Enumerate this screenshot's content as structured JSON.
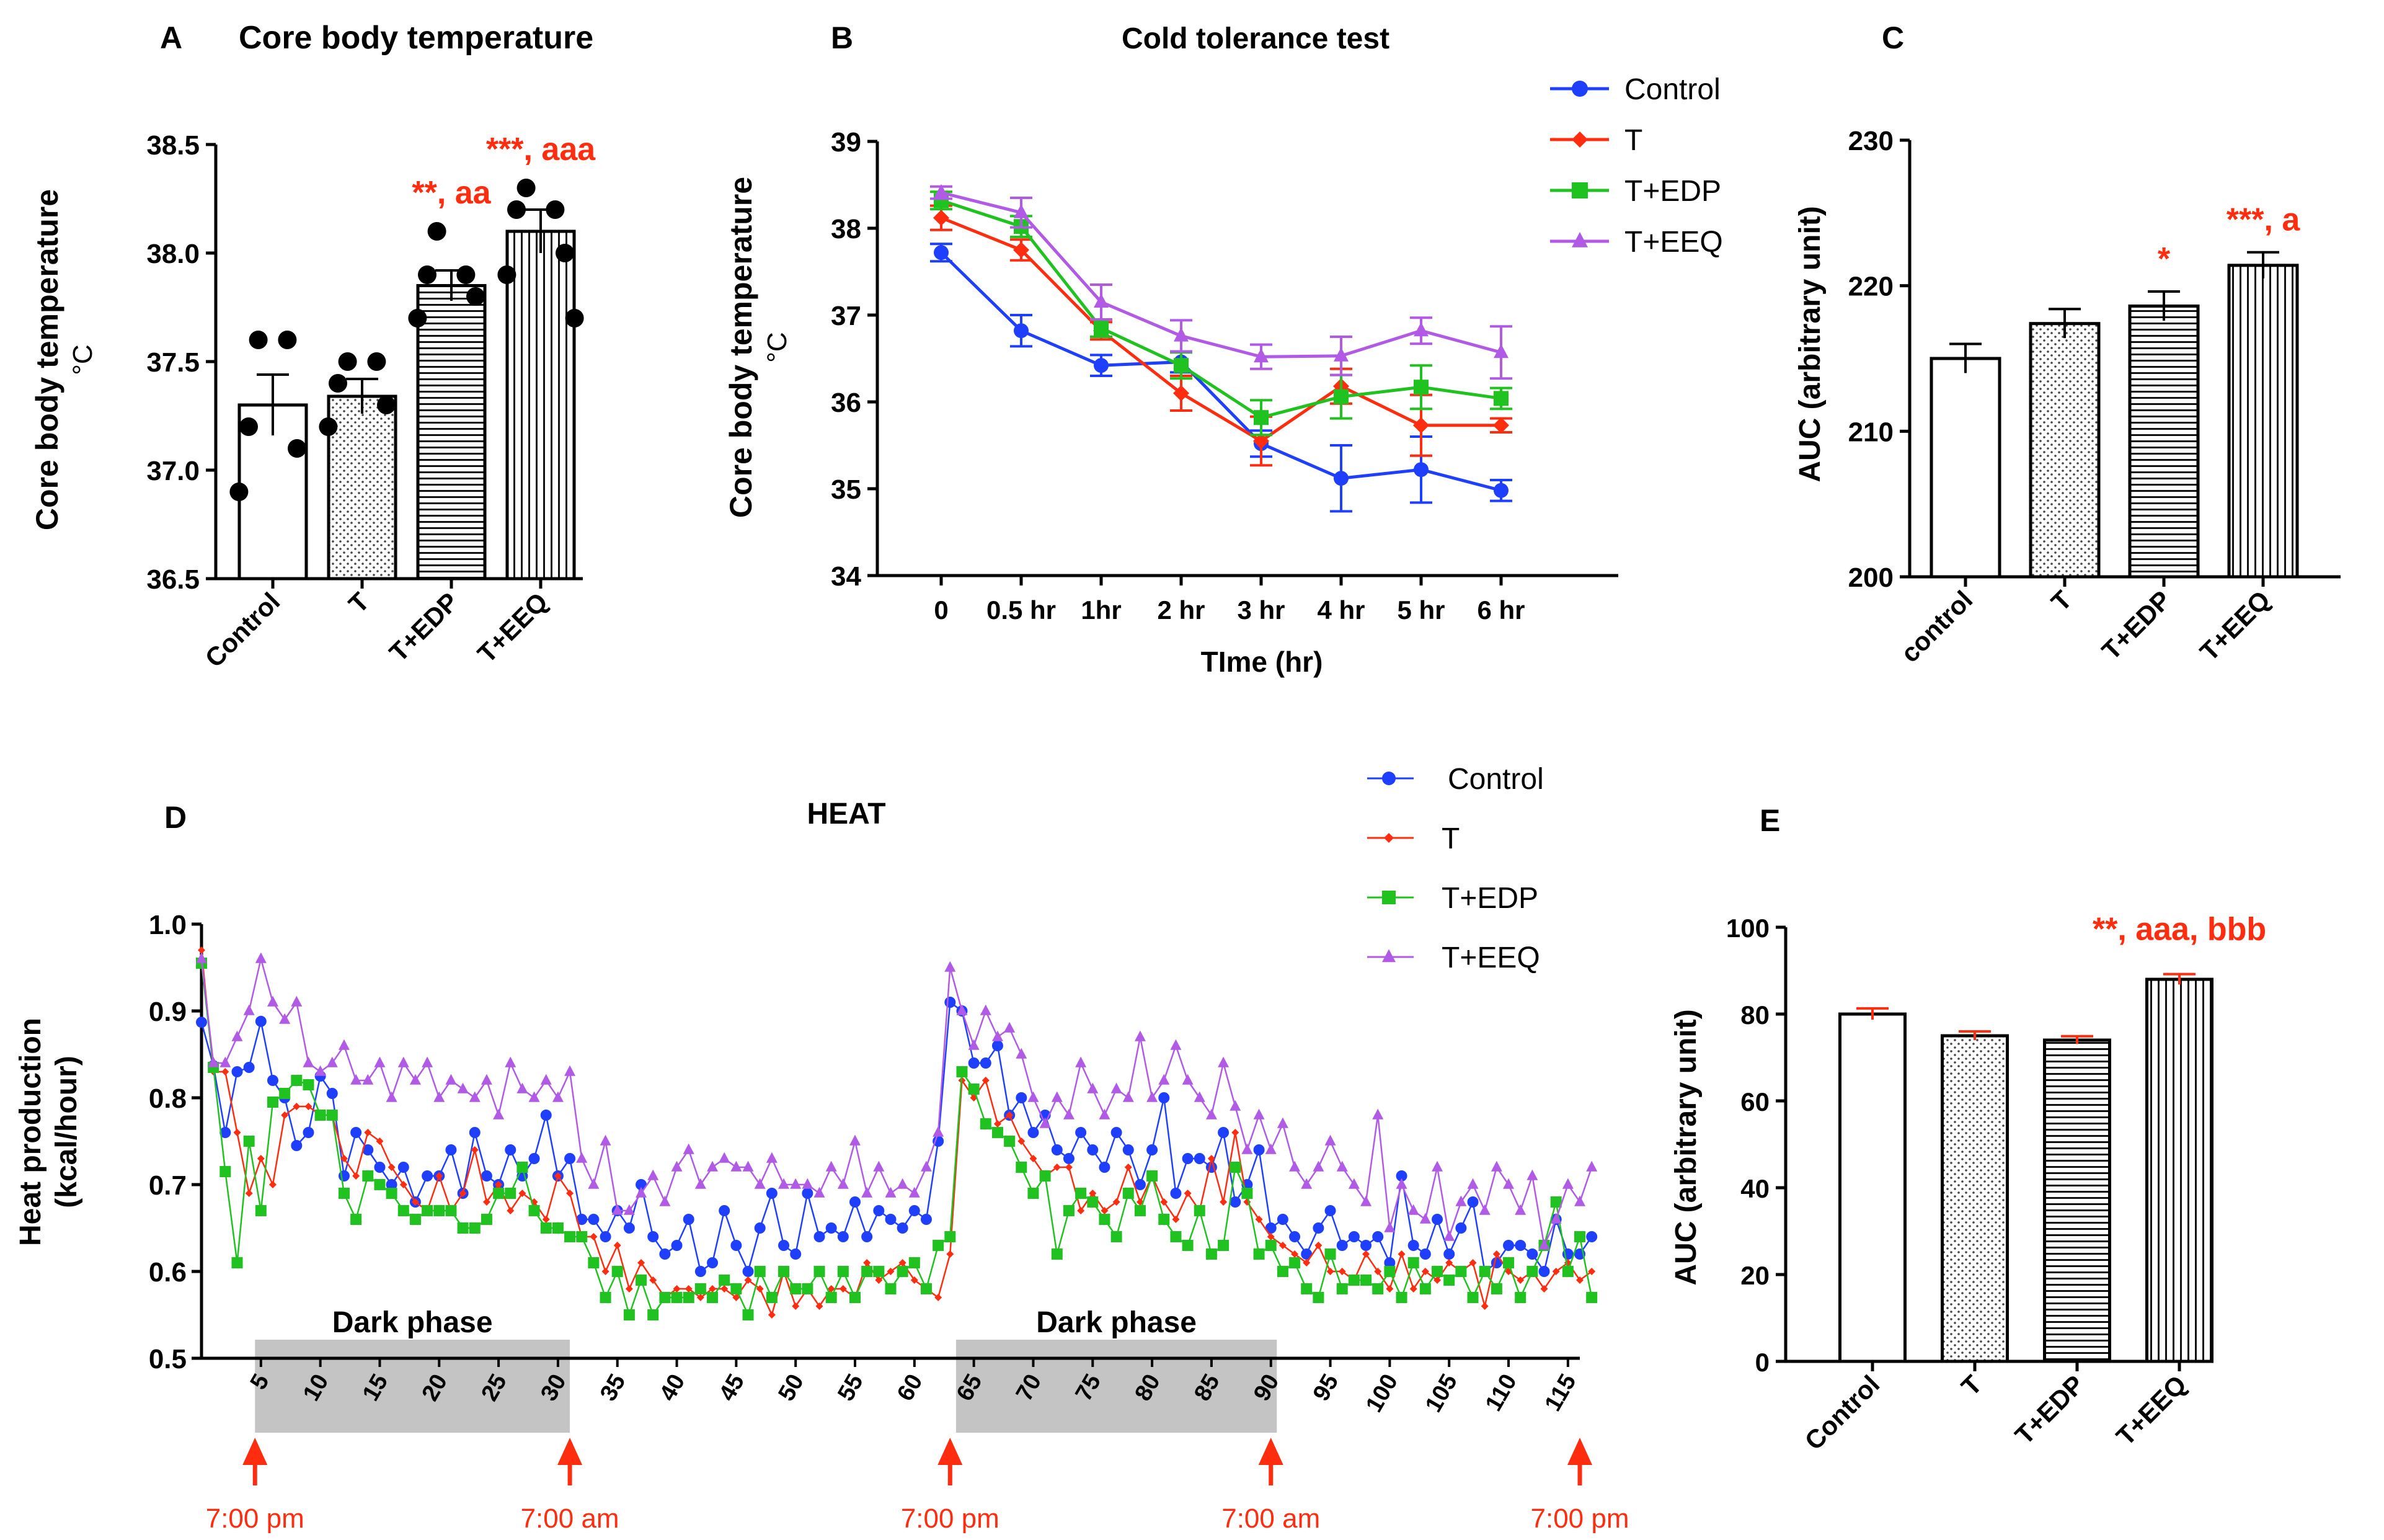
{
  "colors": {
    "control": "#1f3fff",
    "t": "#ff2d10",
    "edp": "#1fc21f",
    "eeq": "#b05ae6",
    "annot": "#ff2d10",
    "axis": "#000000",
    "dark": "#c4c4c4"
  },
  "chart_data": [
    {
      "panel": "A",
      "type": "bar",
      "title": "Core body temperature",
      "ylabel": "Core body temperature",
      "ylabel2": "°C",
      "categories": [
        "Control",
        "T",
        "T+EDP",
        "T+EEQ"
      ],
      "values": [
        37.3,
        37.34,
        37.85,
        38.1
      ],
      "sem": [
        0.14,
        0.08,
        0.07,
        0.1
      ],
      "fills": [
        "white",
        "dots",
        "hlines",
        "vlines"
      ],
      "points": [
        [
          37.6,
          37.6,
          37.2,
          37.1,
          36.9
        ],
        [
          37.5,
          37.5,
          37.4,
          37.3,
          37.2
        ],
        [
          38.1,
          37.9,
          37.9,
          37.8,
          37.7
        ],
        [
          38.3,
          38.2,
          38.2,
          38.0,
          37.9,
          37.7
        ]
      ],
      "yticks": [
        "36.5",
        "37.0",
        "37.5",
        "38.0",
        "38.5"
      ],
      "ylim": [
        36.5,
        38.5
      ],
      "annotations": [
        "",
        "",
        "**, aa",
        "***, aaa"
      ]
    },
    {
      "panel": "B",
      "type": "line",
      "title": "Cold tolerance test",
      "xlabel": "TIme (hr)",
      "ylabel": "Core body temperature",
      "ylabel2": "°C",
      "categories": [
        "0",
        "0.5 hr",
        "1hr",
        "2 hr",
        "3 hr",
        "4 hr",
        "5 hr",
        "6 hr"
      ],
      "yticks": [
        "34",
        "35",
        "36",
        "37",
        "38",
        "39"
      ],
      "ylim": [
        34,
        39
      ],
      "legend": [
        "Control",
        "T",
        "T+EDP",
        "T+EEQ"
      ],
      "series": [
        {
          "name": "Control",
          "values": [
            37.72,
            36.82,
            36.42,
            36.46,
            35.52,
            35.12,
            35.22,
            34.98
          ],
          "err": [
            0.1,
            0.18,
            0.12,
            0.12,
            0.15,
            0.38,
            0.38,
            0.12
          ]
        },
        {
          "name": "T",
          "values": [
            38.12,
            37.75,
            36.82,
            36.1,
            35.55,
            36.18,
            35.73,
            35.73
          ],
          "err": [
            0.14,
            0.12,
            0.1,
            0.2,
            0.28,
            0.2,
            0.35,
            0.08
          ]
        },
        {
          "name": "T+EDP",
          "values": [
            38.32,
            38.02,
            36.85,
            36.42,
            35.82,
            36.06,
            36.17,
            36.04
          ],
          "err": [
            0.1,
            0.12,
            0.1,
            0.15,
            0.2,
            0.25,
            0.25,
            0.12
          ]
        },
        {
          "name": "T+EEQ",
          "values": [
            38.41,
            38.18,
            37.15,
            36.76,
            36.52,
            36.53,
            36.82,
            36.57
          ],
          "err": [
            0.07,
            0.17,
            0.2,
            0.18,
            0.14,
            0.22,
            0.15,
            0.3
          ]
        }
      ]
    },
    {
      "panel": "C",
      "type": "bar",
      "ylabel": "AUC (arbitrary unit)",
      "categories": [
        "control",
        "T",
        "T+EDP",
        "T+EEQ"
      ],
      "values": [
        215.0,
        217.4,
        218.6,
        221.4
      ],
      "sem": [
        1.0,
        1.0,
        1.0,
        0.9
      ],
      "fills": [
        "white",
        "dots",
        "hlines",
        "vlines"
      ],
      "yticks": [
        "200",
        "210",
        "220",
        "230"
      ],
      "ylim": [
        200,
        230
      ],
      "annotations": [
        "",
        "",
        "*",
        "***, a"
      ]
    },
    {
      "panel": "D",
      "type": "line",
      "title": "HEAT",
      "ylabel": "Heat production",
      "ylabel2": "(kcal/hour)",
      "xticks": [
        "5",
        "10",
        "15",
        "20",
        "25",
        "30",
        "35",
        "40",
        "45",
        "50",
        "55",
        "60",
        "65",
        "70",
        "75",
        "80",
        "85",
        "90",
        "95",
        "100",
        "105",
        "110",
        "115"
      ],
      "xlim": [
        0,
        116
      ],
      "yticks": [
        "0.5",
        "0.6",
        "0.7",
        "0.8",
        "0.9",
        "1.0"
      ],
      "ylim": [
        0.5,
        1.0
      ],
      "dark_phases": [
        {
          "label": "Dark phase",
          "start": 4.5,
          "end": 31
        },
        {
          "label": "Dark phase",
          "start": 63.5,
          "end": 90.5
        }
      ],
      "arrows": [
        {
          "x": 4.5,
          "label": "7:00 pm"
        },
        {
          "x": 31,
          "label": "7:00 am"
        },
        {
          "x": 63,
          "label": "7:00 pm"
        },
        {
          "x": 90,
          "label": "7:00 am"
        },
        {
          "x": 116,
          "label": "7:00 pm"
        }
      ],
      "legend": [
        "Control",
        "T",
        "T+EDP",
        "T+EEQ"
      ],
      "series": [
        {
          "name": "Control",
          "values": [
            0.887,
            0.837,
            0.76,
            0.83,
            0.835,
            0.888,
            0.82,
            0.8,
            0.745,
            0.76,
            0.825,
            0.805,
            0.71,
            0.76,
            0.74,
            0.72,
            0.7,
            0.72,
            0.68,
            0.71,
            0.71,
            0.74,
            0.69,
            0.76,
            0.71,
            0.7,
            0.74,
            0.71,
            0.73,
            0.78,
            0.71,
            0.73,
            0.66,
            0.66,
            0.64,
            0.67,
            0.65,
            0.7,
            0.64,
            0.62,
            0.63,
            0.66,
            0.6,
            0.61,
            0.67,
            0.63,
            0.6,
            0.65,
            0.69,
            0.63,
            0.62,
            0.69,
            0.64,
            0.65,
            0.64,
            0.68,
            0.64,
            0.67,
            0.66,
            0.65,
            0.67,
            0.66,
            0.75,
            0.91,
            0.9,
            0.84,
            0.84,
            0.86,
            0.78,
            0.8,
            0.76,
            0.78,
            0.74,
            0.73,
            0.76,
            0.74,
            0.72,
            0.76,
            0.74,
            0.7,
            0.74,
            0.8,
            0.69,
            0.73,
            0.73,
            0.72,
            0.76,
            0.68,
            0.7,
            0.74,
            0.65,
            0.66,
            0.64,
            0.62,
            0.65,
            0.67,
            0.63,
            0.64,
            0.63,
            0.64,
            0.61,
            0.71,
            0.63,
            0.62,
            0.66,
            0.62,
            0.65,
            0.68,
            0.6,
            0.61,
            0.63,
            0.63,
            0.62,
            0.6,
            0.66,
            0.62,
            0.62,
            0.64
          ]
        },
        {
          "name": "T",
          "values": [
            0.97,
            0.83,
            0.83,
            0.76,
            0.69,
            0.73,
            0.7,
            0.78,
            0.79,
            0.79,
            0.78,
            0.78,
            0.73,
            0.71,
            0.76,
            0.75,
            0.72,
            0.7,
            0.68,
            0.67,
            0.71,
            0.67,
            0.69,
            0.74,
            0.68,
            0.7,
            0.67,
            0.69,
            0.68,
            0.66,
            0.71,
            0.69,
            0.64,
            0.64,
            0.6,
            0.63,
            0.58,
            0.61,
            0.59,
            0.57,
            0.58,
            0.58,
            0.57,
            0.58,
            0.58,
            0.57,
            0.59,
            0.58,
            0.55,
            0.6,
            0.56,
            0.58,
            0.56,
            0.58,
            0.58,
            0.57,
            0.61,
            0.59,
            0.6,
            0.61,
            0.59,
            0.58,
            0.57,
            0.62,
            0.82,
            0.8,
            0.82,
            0.77,
            0.78,
            0.75,
            0.73,
            0.71,
            0.72,
            0.72,
            0.67,
            0.69,
            0.67,
            0.68,
            0.72,
            0.68,
            0.71,
            0.68,
            0.66,
            0.69,
            0.67,
            0.73,
            0.68,
            0.76,
            0.68,
            0.66,
            0.64,
            0.63,
            0.62,
            0.61,
            0.63,
            0.6,
            0.6,
            0.59,
            0.62,
            0.6,
            0.58,
            0.62,
            0.58,
            0.6,
            0.59,
            0.61,
            0.6,
            0.61,
            0.56,
            0.62,
            0.6,
            0.59,
            0.6,
            0.58,
            0.6,
            0.61,
            0.59,
            0.6
          ]
        },
        {
          "name": "T+EDP",
          "values": [
            0.955,
            0.835,
            0.715,
            0.61,
            0.75,
            0.67,
            0.795,
            0.805,
            0.82,
            0.815,
            0.78,
            0.78,
            0.69,
            0.66,
            0.71,
            0.7,
            0.69,
            0.67,
            0.66,
            0.67,
            0.67,
            0.67,
            0.65,
            0.65,
            0.66,
            0.69,
            0.69,
            0.72,
            0.67,
            0.65,
            0.65,
            0.64,
            0.64,
            0.61,
            0.57,
            0.6,
            0.55,
            0.59,
            0.55,
            0.57,
            0.57,
            0.57,
            0.58,
            0.57,
            0.59,
            0.58,
            0.55,
            0.6,
            0.57,
            0.6,
            0.58,
            0.58,
            0.6,
            0.57,
            0.6,
            0.57,
            0.6,
            0.6,
            0.58,
            0.6,
            0.61,
            0.58,
            0.63,
            0.64,
            0.83,
            0.81,
            0.77,
            0.76,
            0.75,
            0.72,
            0.69,
            0.71,
            0.62,
            0.67,
            0.69,
            0.68,
            0.66,
            0.64,
            0.69,
            0.67,
            0.71,
            0.66,
            0.64,
            0.63,
            0.67,
            0.62,
            0.63,
            0.72,
            0.69,
            0.62,
            0.63,
            0.6,
            0.61,
            0.58,
            0.57,
            0.62,
            0.58,
            0.59,
            0.59,
            0.58,
            0.6,
            0.57,
            0.61,
            0.58,
            0.6,
            0.59,
            0.6,
            0.57,
            0.6,
            0.58,
            0.61,
            0.57,
            0.6,
            0.63,
            0.68,
            0.6,
            0.64,
            0.57
          ]
        },
        {
          "name": "T+EEQ",
          "values": [
            0.96,
            0.84,
            0.84,
            0.87,
            0.9,
            0.96,
            0.91,
            0.89,
            0.91,
            0.84,
            0.83,
            0.84,
            0.86,
            0.82,
            0.82,
            0.84,
            0.8,
            0.84,
            0.82,
            0.84,
            0.8,
            0.82,
            0.81,
            0.8,
            0.82,
            0.78,
            0.84,
            0.81,
            0.8,
            0.82,
            0.8,
            0.83,
            0.73,
            0.7,
            0.75,
            0.67,
            0.67,
            0.69,
            0.71,
            0.68,
            0.72,
            0.74,
            0.7,
            0.72,
            0.73,
            0.72,
            0.72,
            0.7,
            0.73,
            0.7,
            0.7,
            0.7,
            0.69,
            0.72,
            0.7,
            0.75,
            0.69,
            0.72,
            0.69,
            0.7,
            0.69,
            0.72,
            0.76,
            0.95,
            0.9,
            0.86,
            0.9,
            0.87,
            0.88,
            0.85,
            0.8,
            0.77,
            0.8,
            0.78,
            0.84,
            0.81,
            0.78,
            0.81,
            0.8,
            0.87,
            0.8,
            0.82,
            0.86,
            0.82,
            0.8,
            0.78,
            0.84,
            0.79,
            0.74,
            0.78,
            0.74,
            0.77,
            0.72,
            0.7,
            0.72,
            0.75,
            0.72,
            0.7,
            0.68,
            0.78,
            0.65,
            0.7,
            0.67,
            0.66,
            0.72,
            0.64,
            0.68,
            0.7,
            0.67,
            0.72,
            0.7,
            0.67,
            0.71,
            0.63,
            0.66,
            0.7,
            0.68,
            0.72
          ]
        }
      ]
    },
    {
      "panel": "E",
      "type": "bar",
      "ylabel": "AUC (arbitrary unit)",
      "categories": [
        "Control",
        "T",
        "T+EDP",
        "T+EEQ"
      ],
      "values": [
        80,
        75,
        74,
        88
      ],
      "sem": [
        1.3,
        1.0,
        0.9,
        1.2
      ],
      "fills": [
        "white",
        "dots",
        "hlines",
        "vlines"
      ],
      "yticks": [
        "0",
        "20",
        "40",
        "60",
        "80",
        "100"
      ],
      "ylim": [
        0,
        100
      ],
      "annotations": [
        "",
        "",
        "",
        "**, aaa, bbb"
      ]
    }
  ],
  "panel_letters": {
    "a": "A",
    "b": "B",
    "c": "C",
    "d": "D",
    "e": "E"
  }
}
